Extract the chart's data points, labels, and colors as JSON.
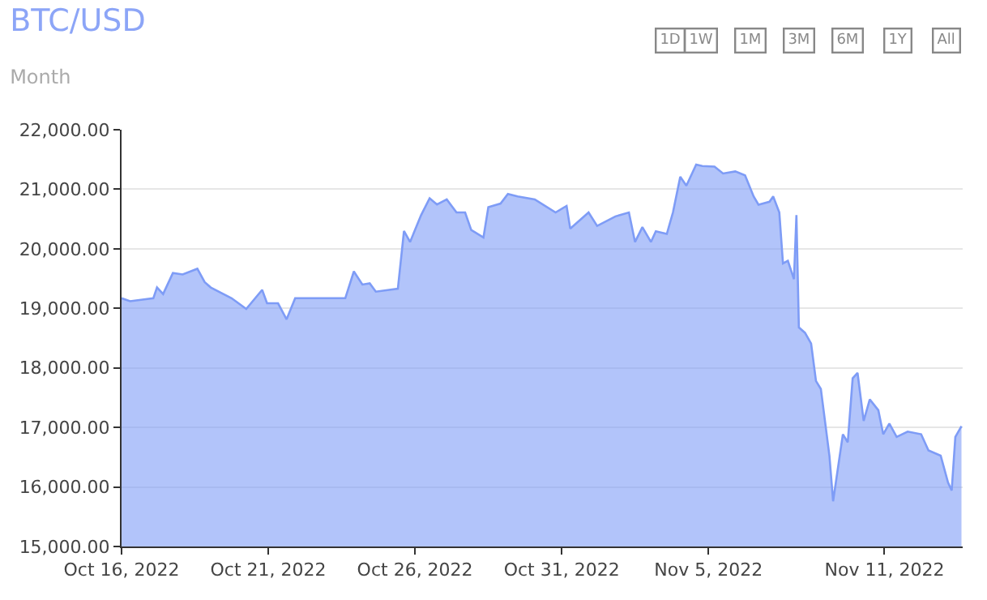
{
  "chart_data": {
    "type": "area",
    "title": "BTC/USD",
    "subtitle": "Month",
    "annotations": [
      "1D",
      "1W",
      "1M",
      "3M",
      "6M",
      "1Y",
      "All"
    ],
    "x": [
      "2022-10-16T00:00",
      "2022-10-16T07:00",
      "2022-10-17T02:00",
      "2022-10-17T05:00",
      "2022-10-17T10:00",
      "2022-10-17T18:00",
      "2022-10-18T02:00",
      "2022-10-18T14:00",
      "2022-10-18T20:00",
      "2022-10-19T01:00",
      "2022-10-19T18:00",
      "2022-10-20T06:00",
      "2022-10-20T19:00",
      "2022-10-20T23:00",
      "2022-10-21T08:00",
      "2022-10-21T15:00",
      "2022-10-21T22:00",
      "2022-10-22T22:00",
      "2022-10-23T15:00",
      "2022-10-23T22:00",
      "2022-10-24T05:00",
      "2022-10-24T11:00",
      "2022-10-24T16:00",
      "2022-10-25T10:00",
      "2022-10-25T15:00",
      "2022-10-25T20:00",
      "2022-10-26T05:00",
      "2022-10-26T12:00",
      "2022-10-26T18:00",
      "2022-10-27T02:00",
      "2022-10-27T10:00",
      "2022-10-27T17:00",
      "2022-10-27T22:00",
      "2022-10-28T08:00",
      "2022-10-28T12:00",
      "2022-10-28T22:00",
      "2022-10-29T04:00",
      "2022-10-29T12:00",
      "2022-10-30T02:00",
      "2022-10-30T19:00",
      "2022-10-31T04:00",
      "2022-10-31T07:00",
      "2022-10-31T22:00",
      "2022-11-01T05:00",
      "2022-11-01T20:00",
      "2022-11-02T07:00",
      "2022-11-02T12:00",
      "2022-11-02T18:00",
      "2022-11-03T01:00",
      "2022-11-03T05:00",
      "2022-11-03T14:00",
      "2022-11-03T19:00",
      "2022-11-04T01:00",
      "2022-11-04T06:00",
      "2022-11-04T14:00",
      "2022-11-04T19:00",
      "2022-11-05T05:00",
      "2022-11-05T12:00",
      "2022-11-05T22:00",
      "2022-11-06T06:00",
      "2022-11-06T13:00",
      "2022-11-06T17:00",
      "2022-11-07T02:00",
      "2022-11-07T05:00",
      "2022-11-07T10:00",
      "2022-11-07T13:00",
      "2022-11-07T17:00",
      "2022-11-07T22:00",
      "2022-11-08T00:00",
      "2022-11-08T02:00",
      "2022-11-08T07:00",
      "2022-11-08T12:00",
      "2022-11-08T16:00",
      "2022-11-08T20:00",
      "2022-11-09T03:00",
      "2022-11-09T06:00",
      "2022-11-09T14:00",
      "2022-11-09T18:00",
      "2022-11-09T22:00",
      "2022-11-10T02:00",
      "2022-11-10T07:00",
      "2022-11-10T12:00",
      "2022-11-10T19:00",
      "2022-11-10T23:00",
      "2022-11-11T04:00",
      "2022-11-11T10:00",
      "2022-11-11T19:00",
      "2022-11-12T06:00",
      "2022-11-12T12:00",
      "2022-11-12T22:00",
      "2022-11-13T04:00",
      "2022-11-13T07:00",
      "2022-11-13T10:00",
      "2022-11-13T15:00"
    ],
    "series": [
      {
        "color": "#7e9cf6",
        "values": [
          19170,
          19120,
          19170,
          19350,
          19240,
          19595,
          19570,
          19665,
          19440,
          19350,
          19170,
          18990,
          19310,
          19085,
          19085,
          18815,
          19170,
          19170,
          19170,
          19620,
          19400,
          19420,
          19280,
          19330,
          20300,
          20115,
          20565,
          20850,
          20745,
          20830,
          20610,
          20610,
          20315,
          20190,
          20700,
          20760,
          20920,
          20880,
          20830,
          20610,
          20720,
          20340,
          20610,
          20385,
          20545,
          20610,
          20115,
          20365,
          20115,
          20295,
          20250,
          20610,
          21210,
          21060,
          21415,
          21390,
          21380,
          21265,
          21300,
          21235,
          20880,
          20740,
          20790,
          20880,
          20610,
          19755,
          19800,
          19490,
          20565,
          18680,
          18590,
          18410,
          17780,
          17645,
          16525,
          15760,
          16885,
          16750,
          17825,
          17915,
          17110,
          17470,
          17290,
          16885,
          17065,
          16840,
          16930,
          16885,
          16615,
          16525,
          16075,
          15940,
          16840,
          17020
        ]
      }
    ],
    "xlim": [
      "2022-10-16",
      "2022-11-13T16:00"
    ],
    "xticks": [
      {
        "value": "2022-10-16",
        "label": "Oct 16, 2022"
      },
      {
        "value": "2022-10-21",
        "label": "Oct 21, 2022"
      },
      {
        "value": "2022-10-26",
        "label": "Oct 26, 2022"
      },
      {
        "value": "2022-10-31",
        "label": "Oct 31, 2022"
      },
      {
        "value": "2022-11-05",
        "label": "Nov 5, 2022"
      },
      {
        "value": "2022-11-11",
        "label": "Nov 11, 2022"
      }
    ],
    "ylim": [
      15000,
      22000
    ],
    "yticks": [
      {
        "value": 15000,
        "label": "15,000.00"
      },
      {
        "value": 16000,
        "label": "16,000.00"
      },
      {
        "value": 17000,
        "label": "17,000.00"
      },
      {
        "value": 18000,
        "label": "18,000.00"
      },
      {
        "value": 19000,
        "label": "19,000.00"
      },
      {
        "value": 20000,
        "label": "20,000.00"
      },
      {
        "value": 21000,
        "label": "21,000.00"
      },
      {
        "value": 22000,
        "label": "22,000.00"
      }
    ],
    "grid": "y",
    "marker": "none",
    "line_style": "solid"
  }
}
